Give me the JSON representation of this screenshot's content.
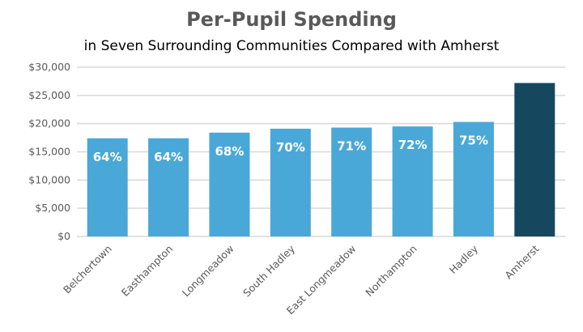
{
  "chart_data": {
    "type": "bar",
    "title": "Per-Pupil Spending",
    "subtitle": "in Seven Surrounding Communities Compared with Amherst",
    "xlabel": "",
    "ylabel": "",
    "ylim": [
      0,
      30000
    ],
    "yticks": [
      0,
      5000,
      10000,
      15000,
      20000,
      25000,
      30000
    ],
    "ytick_labels": [
      "$0",
      "$5,000",
      "$10,000",
      "$15,000",
      "$20,000",
      "$25,000",
      "$30,000"
    ],
    "grid": true,
    "categories": [
      "Belchertown",
      "Easthampton",
      "Longmeadow",
      "South Hadley",
      "East Longmeadow",
      "Northampton",
      "Hadley",
      "Amherst"
    ],
    "values": [
      17400,
      17400,
      18400,
      19100,
      19300,
      19500,
      20300,
      27200
    ],
    "data_labels": [
      "64%",
      "64%",
      "68%",
      "70%",
      "71%",
      "72%",
      "75%",
      ""
    ],
    "colors": {
      "default": "#4aa8d8",
      "highlight": "#15475f",
      "grid": "#d9d9d9"
    },
    "highlight_index": 7
  }
}
